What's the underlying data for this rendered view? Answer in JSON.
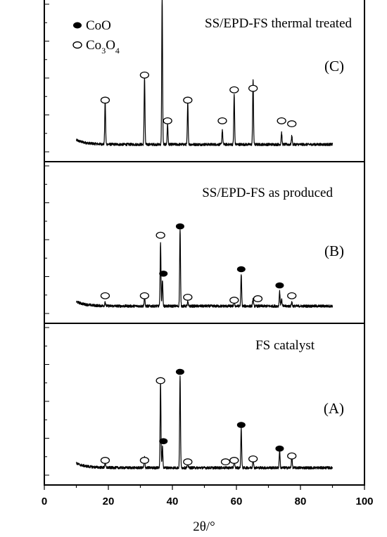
{
  "chart_data": {
    "type": "line",
    "xlabel": "2θ/°",
    "xlim": [
      0,
      100
    ],
    "x_ticks": [
      0,
      20,
      40,
      60,
      80,
      100
    ],
    "legend": {
      "placement": "top-left",
      "entries": [
        {
          "symbol": "filled-ellipse",
          "label": "CoO"
        },
        {
          "symbol": "open-ellipse",
          "label": "Co3O4",
          "display": {
            "base": "Co",
            "sub1": "3",
            "mid": "O",
            "sub2": "4"
          }
        }
      ]
    },
    "panels": [
      {
        "id": "C",
        "title": "SS/EPD-FS thermal treated",
        "tag": "(C)",
        "baseline": 0.05,
        "start_bump": 0.03,
        "peaks": [
          {
            "x": 19.0,
            "h": 0.29
          },
          {
            "x": 31.3,
            "h": 0.46
          },
          {
            "x": 36.8,
            "h": 1.0
          },
          {
            "x": 38.5,
            "h": 0.14
          },
          {
            "x": 44.8,
            "h": 0.28
          },
          {
            "x": 55.6,
            "h": 0.1
          },
          {
            "x": 59.3,
            "h": 0.34
          },
          {
            "x": 65.2,
            "h": 0.44
          },
          {
            "x": 74.1,
            "h": 0.08
          },
          {
            "x": 77.3,
            "h": 0.06
          }
        ],
        "markers": [
          {
            "x": 19.0,
            "type": "open",
            "level": 0.35
          },
          {
            "x": 31.3,
            "type": "open",
            "level": 0.52
          },
          {
            "x": 36.8,
            "type": "open",
            "level": 1.07
          },
          {
            "x": 38.5,
            "type": "open",
            "level": 0.21
          },
          {
            "x": 44.8,
            "type": "open",
            "level": 0.35
          },
          {
            "x": 55.6,
            "type": "open",
            "level": 0.21
          },
          {
            "x": 59.3,
            "type": "open",
            "level": 0.42
          },
          {
            "x": 65.2,
            "type": "open",
            "level": 0.43
          },
          {
            "x": 74.1,
            "type": "open",
            "level": 0.21
          },
          {
            "x": 77.3,
            "type": "open",
            "level": 0.19
          }
        ]
      },
      {
        "id": "B",
        "title": "SS/EPD-FS as produced",
        "tag": "(B)",
        "baseline": 0.05,
        "start_bump": 0.03,
        "peaks": [
          {
            "x": 19.0,
            "h": 0.03
          },
          {
            "x": 31.3,
            "h": 0.06
          },
          {
            "x": 36.3,
            "h": 0.43
          },
          {
            "x": 36.9,
            "h": 0.18
          },
          {
            "x": 42.4,
            "h": 0.52
          },
          {
            "x": 44.8,
            "h": 0.03
          },
          {
            "x": 59.3,
            "h": 0.04
          },
          {
            "x": 61.5,
            "h": 0.21
          },
          {
            "x": 65.2,
            "h": 0.05
          },
          {
            "x": 73.5,
            "h": 0.1
          },
          {
            "x": 74.1,
            "h": 0.05
          },
          {
            "x": 77.3,
            "h": 0.03
          }
        ],
        "markers": [
          {
            "x": 19.0,
            "type": "open",
            "level": 0.12
          },
          {
            "x": 31.3,
            "type": "open",
            "level": 0.12
          },
          {
            "x": 36.3,
            "type": "open",
            "level": 0.53
          },
          {
            "x": 37.2,
            "type": "filled",
            "level": 0.27
          },
          {
            "x": 42.4,
            "type": "filled",
            "level": 0.59
          },
          {
            "x": 44.8,
            "type": "open",
            "level": 0.11
          },
          {
            "x": 59.3,
            "type": "open",
            "level": 0.09
          },
          {
            "x": 61.5,
            "type": "filled",
            "level": 0.3
          },
          {
            "x": 66.7,
            "type": "open",
            "level": 0.1
          },
          {
            "x": 73.5,
            "type": "filled",
            "level": 0.19
          },
          {
            "x": 77.3,
            "type": "open",
            "level": 0.12
          }
        ]
      },
      {
        "id": "A",
        "title": "FS catalyst",
        "tag": "(A)",
        "baseline": 0.05,
        "start_bump": 0.03,
        "peaks": [
          {
            "x": 19.0,
            "h": 0.04
          },
          {
            "x": 31.3,
            "h": 0.07
          },
          {
            "x": 36.3,
            "h": 0.58
          },
          {
            "x": 36.9,
            "h": 0.14
          },
          {
            "x": 42.4,
            "h": 0.62
          },
          {
            "x": 44.8,
            "h": 0.04
          },
          {
            "x": 59.3,
            "h": 0.05
          },
          {
            "x": 61.5,
            "h": 0.27
          },
          {
            "x": 65.2,
            "h": 0.06
          },
          {
            "x": 73.5,
            "h": 0.12
          },
          {
            "x": 77.3,
            "h": 0.08
          }
        ],
        "markers": [
          {
            "x": 19.0,
            "type": "open",
            "level": 0.1
          },
          {
            "x": 31.3,
            "type": "open",
            "level": 0.1
          },
          {
            "x": 36.3,
            "type": "open",
            "level": 0.64
          },
          {
            "x": 37.2,
            "type": "filled",
            "level": 0.23
          },
          {
            "x": 42.4,
            "type": "filled",
            "level": 0.7
          },
          {
            "x": 44.8,
            "type": "open",
            "level": 0.09
          },
          {
            "x": 56.6,
            "type": "open",
            "level": 0.09
          },
          {
            "x": 59.3,
            "type": "open",
            "level": 0.1
          },
          {
            "x": 61.5,
            "type": "filled",
            "level": 0.34
          },
          {
            "x": 65.2,
            "type": "open",
            "level": 0.11
          },
          {
            "x": 73.5,
            "type": "filled",
            "level": 0.18
          },
          {
            "x": 77.3,
            "type": "open",
            "level": 0.13
          }
        ]
      }
    ],
    "colors": {
      "line": "#000000",
      "background": "#ffffff"
    }
  }
}
